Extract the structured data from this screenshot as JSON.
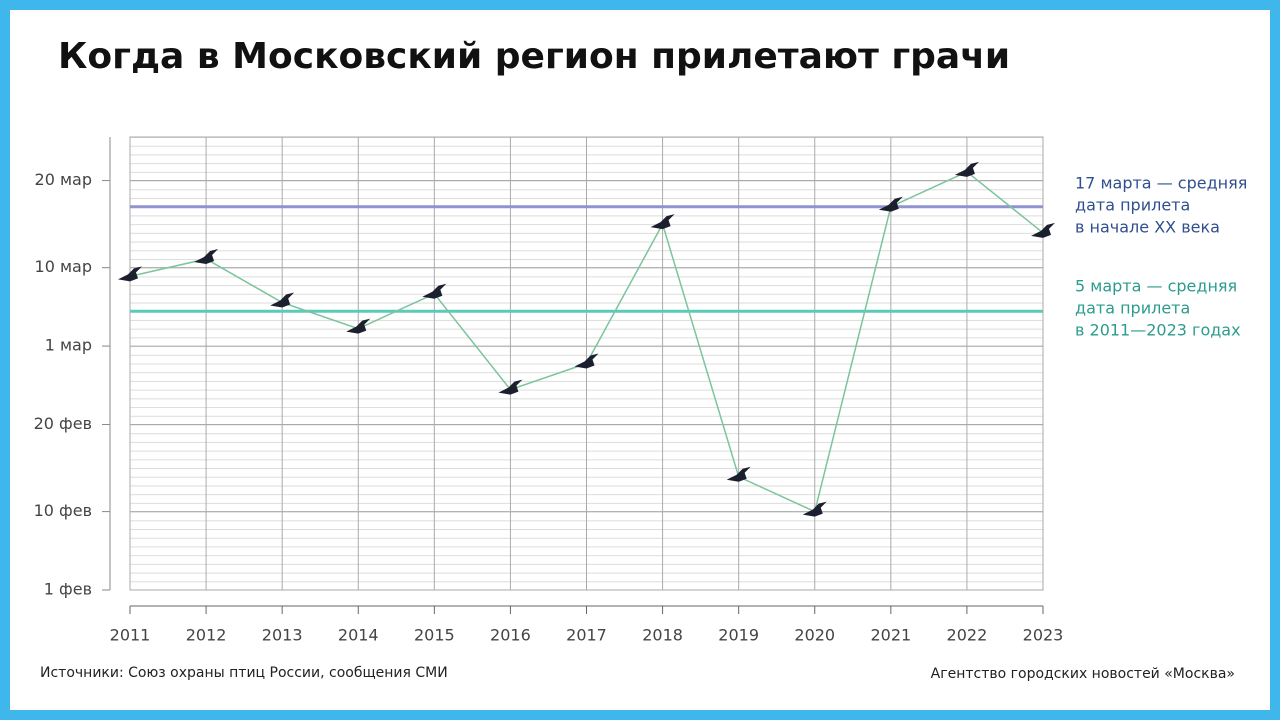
{
  "chart_data": {
    "type": "line",
    "title": "Когда в Московский регион прилетают грачи",
    "x": [
      2011,
      2012,
      2013,
      2014,
      2015,
      2016,
      2017,
      2018,
      2019,
      2020,
      2021,
      2022,
      2023
    ],
    "series": [
      {
        "name": "Грачи",
        "color": "#7cc49b",
        "marker_color": "#1c1f2e",
        "values": [
          68,
          70,
          65,
          62,
          66,
          55,
          58,
          74,
          45,
          41,
          76,
          80,
          73
        ]
      }
    ],
    "xlim": [
      2011,
      2023
    ],
    "xticks": [
      2011,
      2012,
      2013,
      2014,
      2015,
      2016,
      2017,
      2018,
      2019,
      2020,
      2021,
      2022,
      2023
    ],
    "ylim": [
      32,
      84
    ],
    "yticks": [
      {
        "value": 32,
        "label": "1 фев"
      },
      {
        "value": 41,
        "label": "10 фев"
      },
      {
        "value": 51,
        "label": "20 фев"
      },
      {
        "value": 60,
        "label": "1 мар"
      },
      {
        "value": 69,
        "label": "10 мар"
      },
      {
        "value": 79,
        "label": "20 мар"
      }
    ],
    "grid": true,
    "reference_lines": [
      {
        "value": 76,
        "color": "#8f93cf",
        "text_color": "#2f4f8f",
        "label_lines": [
          "17 марта — средняя",
          "дата прилета",
          "в начале XX века"
        ]
      },
      {
        "value": 64,
        "color": "#5ccab8",
        "text_color": "#2c9c8c",
        "label_lines": [
          "5 марта — средняя",
          "дата прилета",
          "в 2011—2023 годах"
        ]
      }
    ],
    "source": "Источники: Союз охраны птиц России, сообщения СМИ",
    "credit": "Агентство городских новостей «Москва»"
  }
}
